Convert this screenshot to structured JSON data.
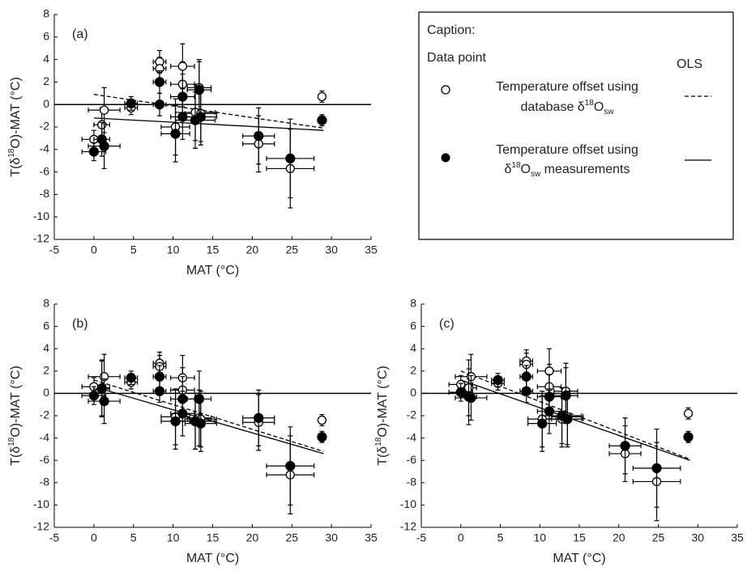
{
  "chart_data": [
    {
      "type": "scatter",
      "panel_label": "(a)",
      "x": [
        0,
        1,
        1.3,
        4.7,
        8.3,
        8.3,
        10.3,
        11.2,
        11.2,
        13.3,
        12.8,
        13.5,
        20.8,
        24.8,
        28.8
      ],
      "x_error": [
        1.5,
        1.0,
        2.0,
        0.8,
        0.8,
        0.8,
        1.8,
        1.5,
        1.5,
        1.5,
        2.5,
        2.0,
        2.0,
        3.0,
        0.4
      ],
      "xlim": [
        -5,
        35
      ],
      "xticks": [
        -5,
        0,
        5,
        10,
        15,
        20,
        25,
        30,
        35
      ],
      "ylim": [
        -12,
        8
      ],
      "yticks": [
        -12,
        -10,
        -8,
        -6,
        -4,
        -2,
        0,
        2,
        4,
        6,
        8
      ],
      "x_label": "MAT (°C)",
      "y_label": [
        {
          "text": "T(δ"
        },
        {
          "text": "18",
          "script": "super"
        },
        {
          "text": "O)-MAT (°C)"
        }
      ],
      "reference_line": 0,
      "series": [
        {
          "marker": "open",
          "color": "#000000",
          "values": [
            -3.1,
            -1.8,
            -0.5,
            -0.3,
            3.8,
            3.2,
            -2.0,
            3.4,
            1.8,
            1.5,
            -0.7,
            -0.8,
            -3.5,
            -5.7,
            0.7
          ],
          "y_error": [
            0.8,
            1.5,
            2.0,
            0.6,
            1.0,
            1.0,
            2.5,
            2.0,
            2.0,
            2.5,
            2.5,
            2.5,
            2.5,
            3.5,
            0.5
          ]
        },
        {
          "marker": "filled",
          "color": "#000000",
          "values": [
            -4.2,
            -3.1,
            -3.7,
            0.1,
            2.0,
            0.0,
            -2.6,
            0.7,
            -1.1,
            1.3,
            -1.4,
            -1.1,
            -2.8,
            -4.8,
            -1.4
          ],
          "y_error": [
            0.8,
            1.5,
            2.0,
            0.6,
            1.0,
            1.0,
            2.5,
            2.0,
            2.0,
            2.5,
            2.5,
            2.5,
            2.5,
            3.5,
            0.5
          ]
        }
      ],
      "fits": [
        {
          "style": "dashed",
          "x": [
            0,
            29
          ],
          "values": [
            0.9,
            -2.1
          ]
        },
        {
          "style": "solid",
          "x": [
            0,
            29
          ],
          "values": [
            -1.2,
            -2.3
          ]
        }
      ]
    },
    {
      "type": "scatter",
      "panel_label": "(b)",
      "x": [
        0,
        1,
        1.3,
        4.7,
        8.3,
        8.3,
        10.3,
        11.2,
        11.2,
        13.3,
        12.8,
        13.5,
        20.8,
        24.8,
        28.8
      ],
      "x_error": [
        1.5,
        1.0,
        2.0,
        0.8,
        0.8,
        0.8,
        1.8,
        1.5,
        1.5,
        1.5,
        2.5,
        2.0,
        2.0,
        3.0,
        0.4
      ],
      "xlim": [
        -5,
        35
      ],
      "xticks": [
        -5,
        0,
        5,
        10,
        15,
        20,
        25,
        30,
        35
      ],
      "ylim": [
        -12,
        8
      ],
      "yticks": [
        -12,
        -10,
        -8,
        -6,
        -4,
        -2,
        0,
        2,
        4,
        6,
        8
      ],
      "x_label": "MAT (°C)",
      "y_label": [
        {
          "text": "T(δ"
        },
        {
          "text": "18",
          "script": "super"
        },
        {
          "text": "O)-MAT (°C)"
        }
      ],
      "reference_line": 0,
      "series": [
        {
          "marker": "open",
          "color": "#000000",
          "values": [
            0.6,
            0.5,
            1.5,
            1.0,
            2.7,
            2.4,
            -2.1,
            1.4,
            0.3,
            -2.2,
            -2.5,
            -2.3,
            -2.6,
            -7.3,
            -2.4
          ],
          "y_error": [
            0.8,
            2.5,
            2.0,
            0.6,
            1.0,
            1.0,
            2.5,
            2.0,
            2.0,
            2.5,
            2.5,
            2.5,
            2.5,
            3.5,
            0.5
          ]
        },
        {
          "marker": "filled",
          "color": "#000000",
          "values": [
            -0.2,
            0.4,
            -0.7,
            1.4,
            1.5,
            0.2,
            -2.5,
            -0.5,
            -1.8,
            -0.5,
            -2.5,
            -2.7,
            -2.2,
            -6.5,
            -3.9
          ],
          "y_error": [
            0.8,
            2.5,
            2.0,
            0.6,
            1.0,
            1.0,
            2.5,
            2.0,
            2.0,
            2.5,
            2.5,
            2.5,
            2.5,
            3.5,
            0.5
          ]
        }
      ],
      "fits": [
        {
          "style": "dashed",
          "x": [
            0,
            29
          ],
          "values": [
            1.2,
            -5.2
          ]
        },
        {
          "style": "solid",
          "x": [
            0,
            29
          ],
          "values": [
            0.6,
            -5.4
          ]
        }
      ]
    },
    {
      "type": "scatter",
      "panel_label": "(c)",
      "x": [
        0,
        1,
        1.3,
        4.7,
        8.3,
        8.3,
        10.3,
        11.2,
        11.2,
        13.3,
        12.8,
        13.5,
        20.8,
        24.8,
        28.8
      ],
      "x_error": [
        1.5,
        1.0,
        2.0,
        0.8,
        0.8,
        0.8,
        1.8,
        1.5,
        1.5,
        1.5,
        2.5,
        2.0,
        2.0,
        3.0,
        0.4
      ],
      "xlim": [
        -5,
        35
      ],
      "xticks": [
        -5,
        0,
        5,
        10,
        15,
        20,
        25,
        30,
        35
      ],
      "ylim": [
        -12,
        8
      ],
      "yticks": [
        -12,
        -10,
        -8,
        -6,
        -4,
        -2,
        0,
        2,
        4,
        6,
        8
      ],
      "x_label": "MAT (°C)",
      "y_label": [
        {
          "text": "T(δ"
        },
        {
          "text": "18",
          "script": "super"
        },
        {
          "text": "O)-MAT (°C)"
        }
      ],
      "reference_line": 0,
      "series": [
        {
          "marker": "open",
          "color": "#000000",
          "values": [
            0.8,
            0.5,
            1.5,
            0.9,
            2.9,
            2.6,
            -2.3,
            2.0,
            0.6,
            0.2,
            -2.3,
            -2.1,
            -5.4,
            -7.9,
            -1.8
          ],
          "y_error": [
            0.8,
            2.5,
            2.0,
            0.6,
            1.0,
            1.0,
            2.5,
            2.0,
            2.0,
            2.5,
            2.5,
            2.5,
            2.5,
            3.5,
            0.5
          ]
        },
        {
          "marker": "filled",
          "color": "#000000",
          "values": [
            0.1,
            -0.3,
            -0.4,
            1.2,
            1.5,
            0.2,
            -2.7,
            -0.3,
            -1.6,
            -0.2,
            -2.0,
            -2.3,
            -4.7,
            -6.7,
            -3.9
          ],
          "y_error": [
            0.8,
            2.5,
            2.0,
            0.6,
            1.0,
            1.0,
            2.5,
            2.0,
            2.0,
            2.5,
            2.5,
            2.5,
            2.5,
            3.5,
            0.5
          ]
        }
      ],
      "fits": [
        {
          "style": "dashed",
          "x": [
            0,
            29
          ],
          "values": [
            2.0,
            -5.9
          ]
        },
        {
          "style": "solid",
          "x": [
            0,
            29
          ],
          "values": [
            1.2,
            -6.0
          ]
        }
      ]
    }
  ],
  "legend": {
    "title": "Caption:",
    "marker_heading": "Data point",
    "line_heading": "OLS",
    "entries": [
      {
        "line1": "Temperature offset using",
        "line2": [
          {
            "text": "database δ"
          },
          {
            "text": "18",
            "script": "super"
          },
          {
            "text": "O"
          },
          {
            "text": "sw",
            "script": "sub"
          }
        ]
      },
      {
        "line1": "Temperature offset using",
        "line2": [
          {
            "text": "δ"
          },
          {
            "text": "18",
            "script": "super"
          },
          {
            "text": "O"
          },
          {
            "text": "sw",
            "script": "sub"
          },
          {
            "text": " measurements"
          }
        ]
      }
    ]
  }
}
